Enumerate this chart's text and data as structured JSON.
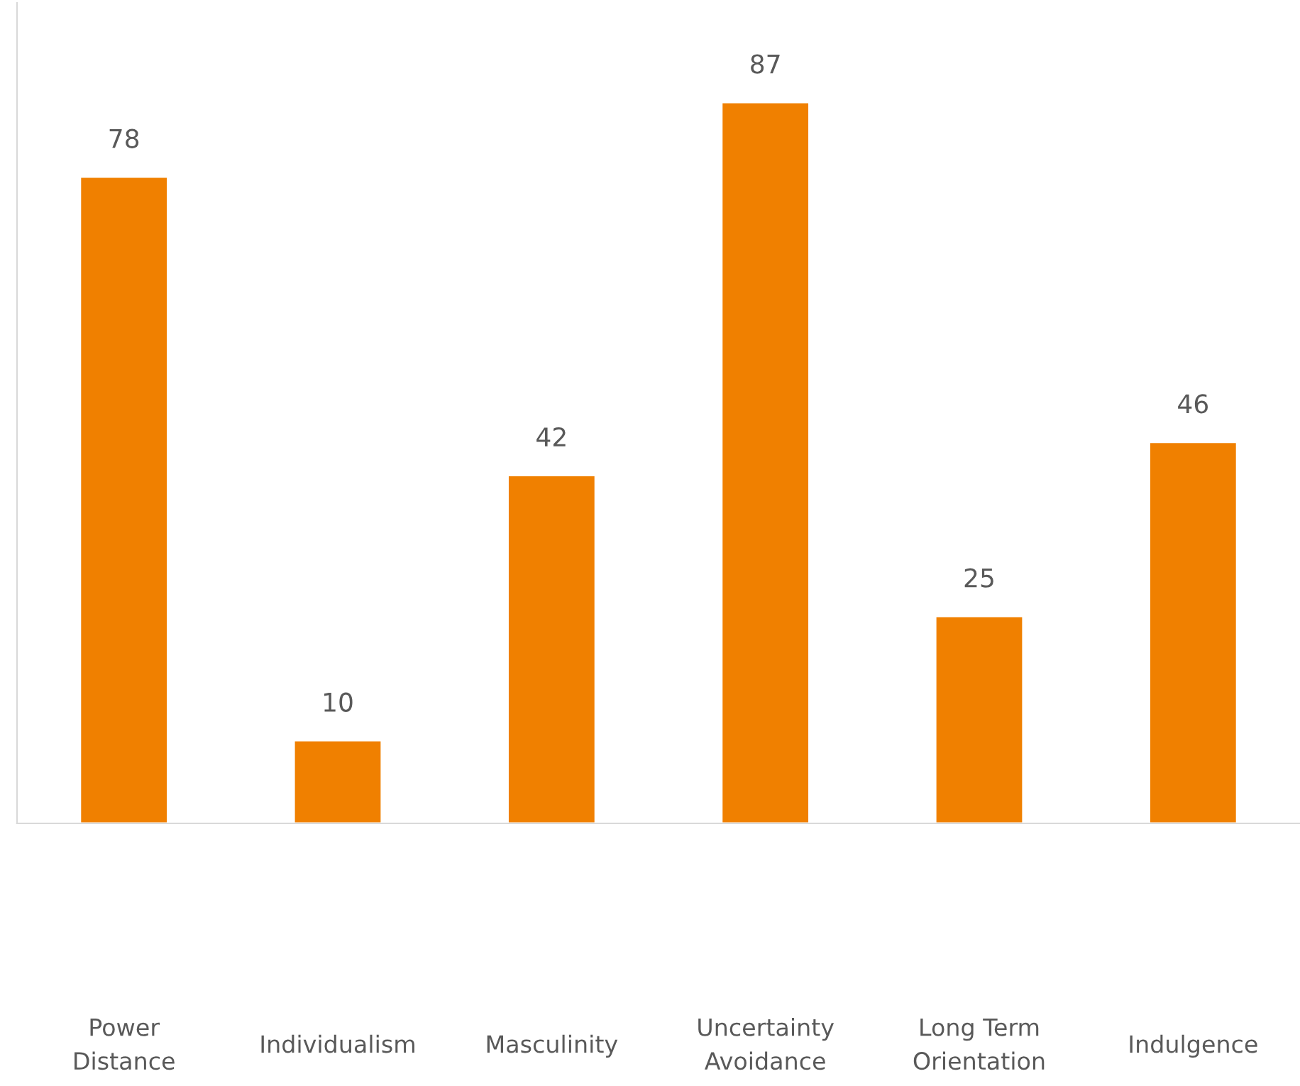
{
  "chart_data": {
    "type": "bar",
    "categories": [
      "Power\nDistance",
      "Individualism",
      "Masculinity",
      "Uncertainty\nAvoidance",
      "Long Term\nOrientation",
      "Indulgence"
    ],
    "values": [
      78,
      10,
      42,
      87,
      25,
      46
    ],
    "color": "#f08000",
    "ylim": [
      0,
      99
    ],
    "data_labels": true,
    "tick_labels": "x",
    "grid": false,
    "legend": false
  }
}
